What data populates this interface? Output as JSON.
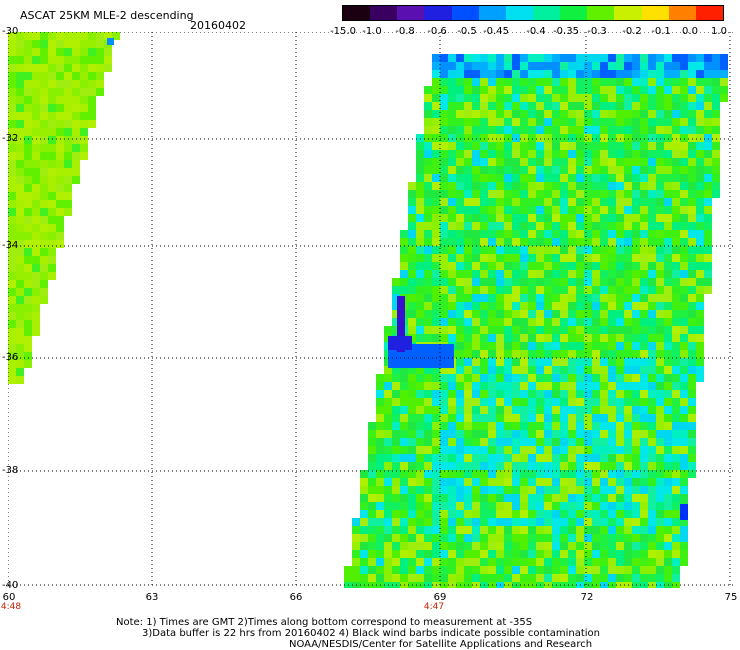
{
  "header": {
    "title": "ASCAT 25KM MLE-2 descending",
    "date": "20160402"
  },
  "colorbar": {
    "labels": [
      "-15.0",
      "-1.0",
      "-0.8",
      "-0.6",
      "-0.5",
      "-0.45",
      "-0.4",
      "-0.35",
      "-0.3",
      "-0.2",
      "-0.1",
      "0.0",
      "1.0"
    ],
    "colors": [
      "#1a0010",
      "#3a0060",
      "#5a10b0",
      "#2020e0",
      "#0050ff",
      "#00a0ff",
      "#00e0f0",
      "#00f0a0",
      "#10f040",
      "#60f000",
      "#c8f000",
      "#ffe000",
      "#ff8000",
      "#ff2000"
    ]
  },
  "axes": {
    "y_labels": [
      "-30",
      "-32",
      "-34",
      "-36",
      "-38",
      "-40"
    ],
    "x_labels": [
      "60",
      "63",
      "66",
      "69",
      "72",
      "75"
    ]
  },
  "times": [
    "4:48",
    "4:47"
  ],
  "notes": {
    "line1": "Note: 1) Times are GMT 2)Times along bottom correspond to measurement at -35S",
    "line2": "3)Data buffer is 22 hrs from 20160402 4) Black wind barbs indicate possible contamination",
    "line3": "NOAA/NESDIS/Center for Satellite Applications and Research"
  }
}
